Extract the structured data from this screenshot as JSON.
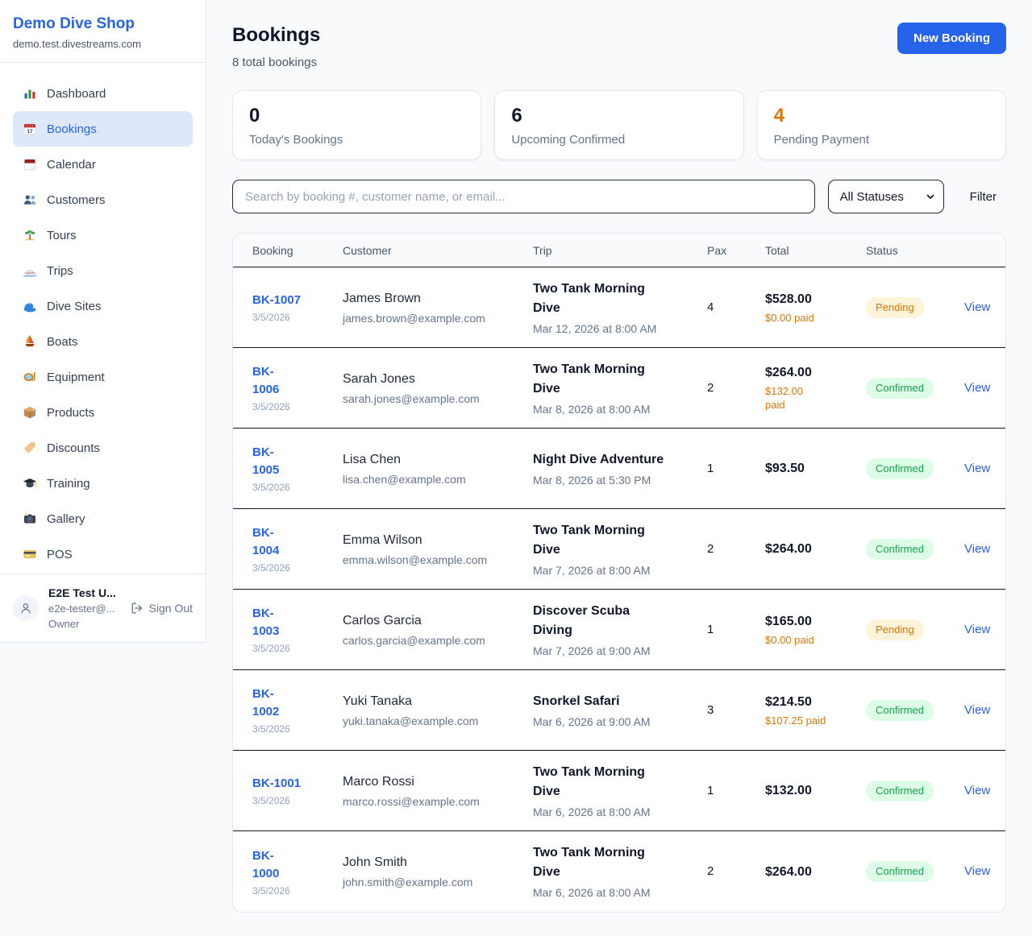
{
  "sidebar": {
    "brand": "Demo Dive Shop",
    "domain": "demo.test.divestreams.com",
    "items": [
      {
        "label": "Dashboard",
        "icon": "bar-chart",
        "active": false
      },
      {
        "label": "Bookings",
        "icon": "spiral-calendar",
        "active": true
      },
      {
        "label": "Calendar",
        "icon": "tear-off-calendar",
        "active": false
      },
      {
        "label": "Customers",
        "icon": "people",
        "active": false
      },
      {
        "label": "Tours",
        "icon": "island",
        "active": false
      },
      {
        "label": "Trips",
        "icon": "speedboat",
        "active": false
      },
      {
        "label": "Dive Sites",
        "icon": "wave",
        "active": false
      },
      {
        "label": "Boats",
        "icon": "sailboat",
        "active": false
      },
      {
        "label": "Equipment",
        "icon": "diving-mask",
        "active": false
      },
      {
        "label": "Products",
        "icon": "package",
        "active": false
      },
      {
        "label": "Discounts",
        "icon": "tag",
        "active": false
      },
      {
        "label": "Training",
        "icon": "graduation-cap",
        "active": false
      },
      {
        "label": "Gallery",
        "icon": "camera",
        "active": false
      },
      {
        "label": "POS",
        "icon": "credit-card",
        "active": false
      }
    ],
    "user": {
      "name": "E2E Test U...",
      "email": "e2e-tester@...",
      "role": "Owner",
      "sign_out": "Sign Out"
    }
  },
  "header": {
    "title": "Bookings",
    "subtitle": "8 total bookings",
    "new_booking": "New Booking"
  },
  "stats": [
    {
      "value": "0",
      "label": "Today's Bookings",
      "value_color": "#0f172a"
    },
    {
      "value": "6",
      "label": "Upcoming Confirmed",
      "value_color": "#0f172a"
    },
    {
      "value": "4",
      "label": "Pending Payment",
      "value_color": "#d97706"
    }
  ],
  "filters": {
    "search_placeholder": "Search by booking #, customer name, or email...",
    "status_option": "All Statuses",
    "filter_label": "Filter"
  },
  "table": {
    "columns": [
      "Booking",
      "Customer",
      "Trip",
      "Pax",
      "Total",
      "Status"
    ],
    "rows": [
      {
        "id": "BK-1007",
        "date": "3/5/2026",
        "customer": "James Brown",
        "email": "james.brown@example.com",
        "trip": "Two Tank Morning\nDive",
        "trip_date": "Mar 12, 2026 at 8:00 AM",
        "pax": "4",
        "total": "$528.00",
        "paid": "$0.00 paid",
        "status": "Pending",
        "action": "View"
      },
      {
        "id": "BK-\n1006",
        "date": "3/5/2026",
        "customer": "Sarah Jones",
        "email": "sarah.jones@example.com",
        "trip": "Two Tank Morning\nDive",
        "trip_date": "Mar 8, 2026 at 8:00 AM",
        "pax": "2",
        "total": "$264.00",
        "paid": "$132.00\npaid",
        "status": "Confirmed",
        "action": "View"
      },
      {
        "id": "BK-\n1005",
        "date": "3/5/2026",
        "customer": "Lisa Chen",
        "email": "lisa.chen@example.com",
        "trip": "Night Dive Adventure",
        "trip_date": "Mar 8, 2026 at 5:30 PM",
        "pax": "1",
        "total": "$93.50",
        "paid": null,
        "status": "Confirmed",
        "action": "View"
      },
      {
        "id": "BK-\n1004",
        "date": "3/5/2026",
        "customer": "Emma Wilson",
        "email": "emma.wilson@example.com",
        "trip": "Two Tank Morning\nDive",
        "trip_date": "Mar 7, 2026 at 8:00 AM",
        "pax": "2",
        "total": "$264.00",
        "paid": null,
        "status": "Confirmed",
        "action": "View"
      },
      {
        "id": "BK-\n1003",
        "date": "3/5/2026",
        "customer": "Carlos Garcia",
        "email": "carlos.garcia@example.com",
        "trip": "Discover Scuba\nDiving",
        "trip_date": "Mar 7, 2026 at 9:00 AM",
        "pax": "1",
        "total": "$165.00",
        "paid": "$0.00 paid",
        "status": "Pending",
        "action": "View"
      },
      {
        "id": "BK-\n1002",
        "date": "3/5/2026",
        "customer": "Yuki Tanaka",
        "email": "yuki.tanaka@example.com",
        "trip": "Snorkel Safari",
        "trip_date": "Mar 6, 2026 at 9:00 AM",
        "pax": "3",
        "total": "$214.50",
        "paid": "$107.25 paid",
        "status": "Confirmed",
        "action": "View"
      },
      {
        "id": "BK-1001",
        "date": "3/5/2026",
        "customer": "Marco Rossi",
        "email": "marco.rossi@example.com",
        "trip": "Two Tank Morning\nDive",
        "trip_date": "Mar 6, 2026 at 8:00 AM",
        "pax": "1",
        "total": "$132.00",
        "paid": null,
        "status": "Confirmed",
        "action": "View"
      },
      {
        "id": "BK-\n1000",
        "date": "3/5/2026",
        "customer": "John Smith",
        "email": "john.smith@example.com",
        "trip": "Two Tank Morning\nDive",
        "trip_date": "Mar 6, 2026 at 8:00 AM",
        "pax": "2",
        "total": "$264.00",
        "paid": null,
        "status": "Confirmed",
        "action": "View"
      }
    ]
  },
  "colors": {
    "accent": "#2563eb",
    "pending_accent": "#d97706",
    "status": {
      "Pending": {
        "bg": "#fdf3d8",
        "text": "#d97706"
      },
      "Confirmed": {
        "bg": "#dcfce7",
        "text": "#16a34a"
      }
    }
  }
}
